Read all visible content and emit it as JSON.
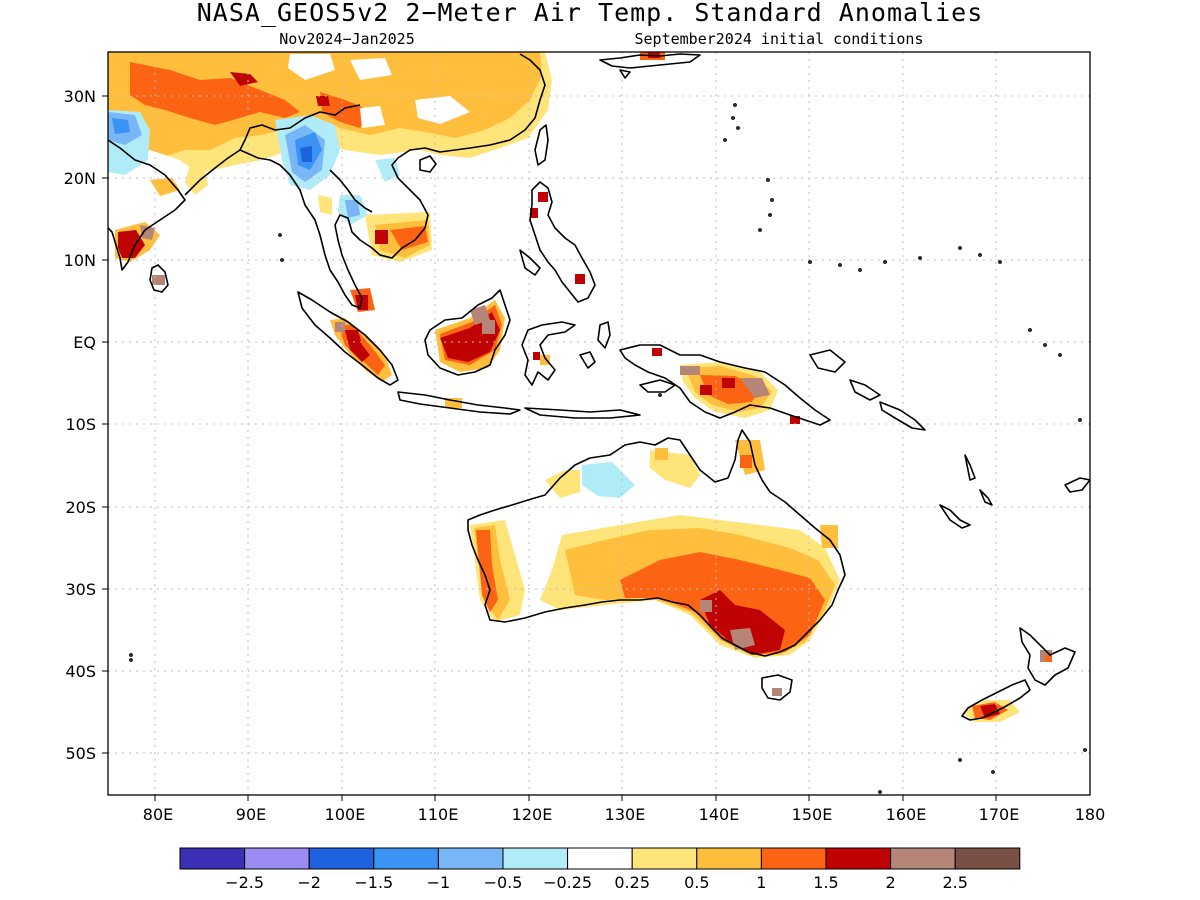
{
  "title": "NASA_GEOS5v2 2−Meter Air Temp. Standard Anomalies",
  "subtitle_left": "Nov2024−Jan2025",
  "subtitle_right": "September2024 initial conditions",
  "lat_labels": [
    "30N",
    "20N",
    "10N",
    "EQ",
    "10S",
    "20S",
    "30S",
    "40S",
    "50S"
  ],
  "lon_labels": [
    "80E",
    "90E",
    "100E",
    "110E",
    "120E",
    "130E",
    "140E",
    "150E",
    "160E",
    "170E",
    "180"
  ],
  "colorbar": {
    "colors": [
      "#3a2fb5",
      "#9a8cf2",
      "#1f62e0",
      "#3a92f2",
      "#78b6f7",
      "#b0ecf7",
      "#ffffff",
      "#ffe47a",
      "#ffbe3c",
      "#fc6414",
      "#bf0303",
      "#b58678",
      "#7a5044"
    ],
    "labels": [
      "−2.5",
      "−2",
      "−1.5",
      "−1",
      "−0.5",
      "−0.25",
      "0.25",
      "0.5",
      "1",
      "1.5",
      "2",
      "2.5"
    ]
  },
  "map": {
    "lon_range": [
      75,
      180
    ],
    "lat_range": [
      -55,
      35
    ],
    "grid_lons": [
      80,
      90,
      100,
      110,
      120,
      130,
      140,
      150,
      160,
      170
    ],
    "grid_lats": [
      30,
      20,
      10,
      0,
      -10,
      -20,
      -30,
      -40,
      -50
    ]
  }
}
